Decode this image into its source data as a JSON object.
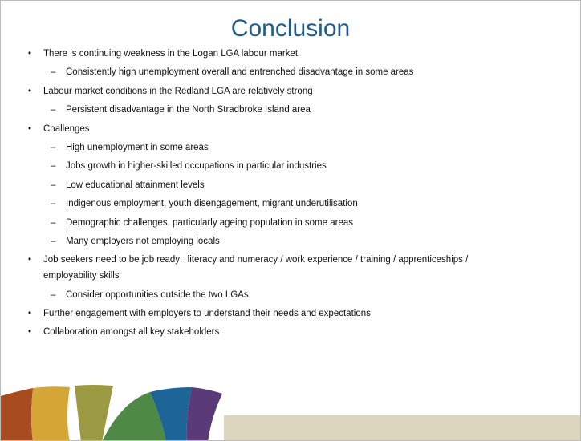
{
  "title": "Conclusion",
  "bullets": [
    {
      "text": "There is continuing weakness in the Logan LGA labour market",
      "subitems": [
        "Consistently high unemployment overall and entrenched disadvantage in some areas"
      ]
    },
    {
      "text": "Labour market conditions in the Redland LGA are relatively strong",
      "subitems": [
        "Persistent disadvantage in the North Stradbroke Island area"
      ]
    },
    {
      "text": "Challenges",
      "subitems": [
        "High unemployment in some areas",
        "Jobs growth in higher-skilled occupations in particular industries",
        "Low educational attainment levels",
        "Indigenous employment, youth disengagement, migrant underutilisation",
        "Demographic challenges, particularly ageing population in some areas",
        "Many employers not employing locals"
      ]
    },
    {
      "text": "Job seekers need to be job ready:  literacy and numeracy / work experience / training / apprenticeships / employability skills",
      "subitems": [
        "Consider opportunities outside the two LGAs"
      ]
    },
    {
      "text": "Further engagement with employers to understand their needs and expectations",
      "subitems": []
    },
    {
      "text": "Collaboration amongst all key stakeholders",
      "subitems": []
    }
  ]
}
